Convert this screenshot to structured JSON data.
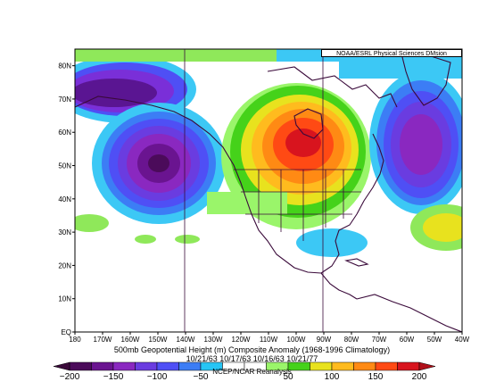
{
  "credit": "NOAA/ESRL Physical Sciences DMsion",
  "title": "500mb Geopotential Height (m) Composite Anomaly (1968-1996 Climatology)",
  "dates": "10/21/63 10/17/63 10/16/63 10/21/77",
  "source": "NCEP/NCAR Reanalysis",
  "lat_labels": [
    "80N",
    "70N",
    "60N",
    "50N",
    "40N",
    "30N",
    "20N",
    "10N",
    "EQ"
  ],
  "lon_labels": [
    "180",
    "170W",
    "160W",
    "150W",
    "140W",
    "130W",
    "120W",
    "110W",
    "100W",
    "90W",
    "80W",
    "70W",
    "60W",
    "50W",
    "40W"
  ],
  "colorbar": {
    "tick_labels": [
      "−200",
      "−150",
      "−100",
      "−50",
      "50",
      "100",
      "150",
      "200"
    ],
    "colors": [
      "#4b0b5a",
      "#6a1490",
      "#8a28c0",
      "#6a3ce0",
      "#4f4ff5",
      "#3c7df5",
      "#26c5f5",
      "#ffffff",
      "#ffffff",
      "#9af56a",
      "#45d21a",
      "#e8e21e",
      "#ffbb1e",
      "#ff8a14",
      "#ff4a14",
      "#d8141e"
    ]
  },
  "map_data": {
    "lon_range": [
      180,
      40
    ],
    "lat_range": [
      0,
      85
    ],
    "positive_center": {
      "lat": 55,
      "lon": 100,
      "value": 200
    },
    "negative_centers": [
      {
        "lat": 50,
        "lon": 150,
        "value": -200
      },
      {
        "lat": 55,
        "lon": 60,
        "value": -150
      }
    ],
    "colors": {
      "land_outline": "#3a0a3a",
      "state_lines": "#3a0a3a"
    }
  }
}
